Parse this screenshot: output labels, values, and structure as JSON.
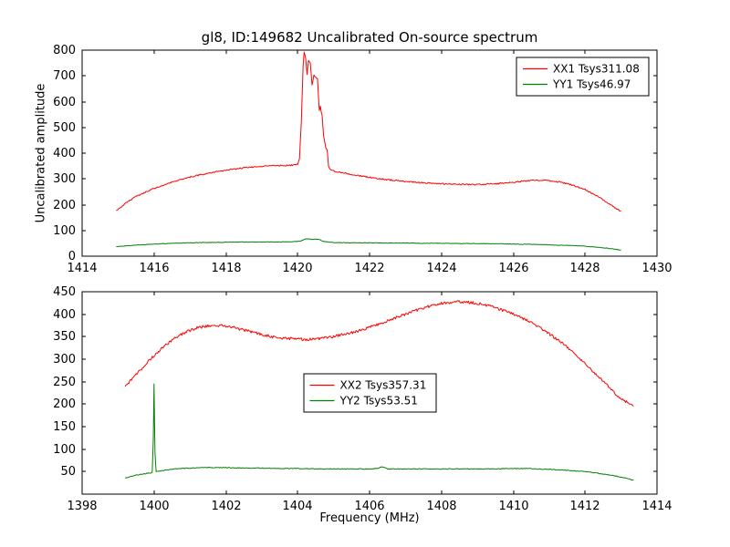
{
  "figure": {
    "title": "gl8, ID:149682 Uncalibrated On-source spectrum",
    "xlabel": "Frequency (MHz)",
    "ylabel": "Uncalibrated amplitude",
    "background": "#ffffff",
    "axis_color": "#000000"
  },
  "chart_data": [
    {
      "type": "line",
      "subplot": "top",
      "xlim": [
        1414,
        1430
      ],
      "ylim": [
        0,
        800
      ],
      "xticks": [
        1414,
        1416,
        1418,
        1420,
        1422,
        1424,
        1426,
        1428,
        1430
      ],
      "yticks": [
        0,
        100,
        200,
        300,
        400,
        500,
        600,
        700,
        800
      ],
      "grid": false,
      "legend_position": "upper-right",
      "series": [
        {
          "name": "XX1 Tsys311.08",
          "color": "#ff0000",
          "noise": 2.5,
          "points": [
            [
              1414.95,
              175
            ],
            [
              1415.2,
              205
            ],
            [
              1415.5,
              232
            ],
            [
              1416,
              263
            ],
            [
              1416.5,
              288
            ],
            [
              1417,
              307
            ],
            [
              1417.5,
              322
            ],
            [
              1418,
              334
            ],
            [
              1418.5,
              343
            ],
            [
              1419,
              349
            ],
            [
              1419.5,
              352
            ],
            [
              1419.8,
              353
            ],
            [
              1420.0,
              356
            ],
            [
              1420.05,
              380
            ],
            [
              1420.1,
              520
            ],
            [
              1420.15,
              740
            ],
            [
              1420.18,
              790
            ],
            [
              1420.22,
              770
            ],
            [
              1420.26,
              705
            ],
            [
              1420.3,
              760
            ],
            [
              1420.35,
              750
            ],
            [
              1420.4,
              665
            ],
            [
              1420.45,
              705
            ],
            [
              1420.5,
              695
            ],
            [
              1420.55,
              690
            ],
            [
              1420.6,
              565
            ],
            [
              1420.63,
              580
            ],
            [
              1420.68,
              545
            ],
            [
              1420.72,
              470
            ],
            [
              1420.78,
              420
            ],
            [
              1420.82,
              415
            ],
            [
              1420.86,
              350
            ],
            [
              1420.9,
              338
            ],
            [
              1421,
              331
            ],
            [
              1421.5,
              317
            ],
            [
              1422,
              306
            ],
            [
              1422.5,
              297
            ],
            [
              1423,
              290
            ],
            [
              1423.5,
              285
            ],
            [
              1424,
              281
            ],
            [
              1424.5,
              279
            ],
            [
              1425,
              278
            ],
            [
              1425.5,
              281
            ],
            [
              1426,
              287
            ],
            [
              1426.3,
              292
            ],
            [
              1426.6,
              295
            ],
            [
              1427,
              293
            ],
            [
              1427.3,
              288
            ],
            [
              1427.6,
              278
            ],
            [
              1428,
              258
            ],
            [
              1428.4,
              228
            ],
            [
              1428.7,
              200
            ],
            [
              1429,
              173
            ]
          ]
        },
        {
          "name": "YY1 Tsys46.97",
          "color": "#008000",
          "noise": 1.0,
          "points": [
            [
              1414.95,
              37
            ],
            [
              1415.5,
              43
            ],
            [
              1416,
              47
            ],
            [
              1416.5,
              50
            ],
            [
              1417,
              52
            ],
            [
              1417.5,
              53
            ],
            [
              1418,
              54
            ],
            [
              1418.5,
              55
            ],
            [
              1419,
              55
            ],
            [
              1419.5,
              55
            ],
            [
              1420,
              57
            ],
            [
              1420.1,
              60
            ],
            [
              1420.2,
              66
            ],
            [
              1420.3,
              68
            ],
            [
              1420.4,
              64
            ],
            [
              1420.5,
              67
            ],
            [
              1420.6,
              65
            ],
            [
              1420.7,
              58
            ],
            [
              1420.8,
              56
            ],
            [
              1420.9,
              54
            ],
            [
              1421,
              53
            ],
            [
              1421.5,
              52
            ],
            [
              1422,
              52
            ],
            [
              1422.5,
              51
            ],
            [
              1423,
              51
            ],
            [
              1423.5,
              50
            ],
            [
              1424,
              50
            ],
            [
              1424.5,
              49
            ],
            [
              1425,
              49
            ],
            [
              1425.5,
              48
            ],
            [
              1426,
              47
            ],
            [
              1426.5,
              46
            ],
            [
              1427,
              44
            ],
            [
              1427.5,
              42
            ],
            [
              1428,
              39
            ],
            [
              1428.5,
              33
            ],
            [
              1429,
              24
            ]
          ]
        }
      ]
    },
    {
      "type": "line",
      "subplot": "bottom",
      "xlim": [
        1398,
        1414
      ],
      "ylim": [
        0,
        450
      ],
      "xticks": [
        1398,
        1400,
        1402,
        1404,
        1406,
        1408,
        1410,
        1412,
        1414
      ],
      "yticks": [
        50,
        100,
        150,
        200,
        250,
        300,
        350,
        400,
        450
      ],
      "grid": false,
      "legend_position": "center",
      "series": [
        {
          "name": "XX2 Tsys357.31",
          "color": "#ff0000",
          "noise": 3.0,
          "points": [
            [
              1399.2,
              238
            ],
            [
              1399.4,
              258
            ],
            [
              1399.7,
              283
            ],
            [
              1400,
              308
            ],
            [
              1400.3,
              330
            ],
            [
              1400.6,
              348
            ],
            [
              1400.9,
              361
            ],
            [
              1401.2,
              370
            ],
            [
              1401.5,
              374
            ],
            [
              1401.8,
              375
            ],
            [
              1402.1,
              372
            ],
            [
              1402.4,
              367
            ],
            [
              1402.7,
              361
            ],
            [
              1403,
              355
            ],
            [
              1403.3,
              350
            ],
            [
              1403.6,
              347
            ],
            [
              1403.9,
              345
            ],
            [
              1404.2,
              344
            ],
            [
              1404.5,
              345
            ],
            [
              1404.8,
              348
            ],
            [
              1405.1,
              352
            ],
            [
              1405.4,
              357
            ],
            [
              1405.7,
              363
            ],
            [
              1406,
              371
            ],
            [
              1406.3,
              379
            ],
            [
              1406.6,
              388
            ],
            [
              1406.9,
              397
            ],
            [
              1407.2,
              406
            ],
            [
              1407.5,
              414
            ],
            [
              1407.8,
              421
            ],
            [
              1408.1,
              425
            ],
            [
              1408.4,
              428
            ],
            [
              1408.7,
              427
            ],
            [
              1409,
              424
            ],
            [
              1409.3,
              419
            ],
            [
              1409.6,
              412
            ],
            [
              1409.9,
              403
            ],
            [
              1410.2,
              393
            ],
            [
              1410.5,
              381
            ],
            [
              1410.8,
              367
            ],
            [
              1411.1,
              351
            ],
            [
              1411.4,
              333
            ],
            [
              1411.7,
              313
            ],
            [
              1412,
              291
            ],
            [
              1412.3,
              267
            ],
            [
              1412.6,
              243
            ],
            [
              1412.9,
              219
            ],
            [
              1413.1,
              207
            ],
            [
              1413.35,
              196
            ]
          ]
        },
        {
          "name": "YY2 Tsys53.51",
          "color": "#008000",
          "noise": 0.8,
          "points": [
            [
              1399.2,
              36
            ],
            [
              1399.5,
              42
            ],
            [
              1399.8,
              46
            ],
            [
              1399.95,
              48
            ],
            [
              1399.98,
              120
            ],
            [
              1400.0,
              245
            ],
            [
              1400.03,
              90
            ],
            [
              1400.06,
              50
            ],
            [
              1400.3,
              53
            ],
            [
              1400.6,
              56
            ],
            [
              1401,
              58
            ],
            [
              1401.5,
              59
            ],
            [
              1402,
              59
            ],
            [
              1402.5,
              58
            ],
            [
              1403,
              58
            ],
            [
              1403.5,
              57
            ],
            [
              1404,
              57
            ],
            [
              1404.5,
              56
            ],
            [
              1405,
              56
            ],
            [
              1405.5,
              56
            ],
            [
              1406,
              56
            ],
            [
              1406.2,
              57
            ],
            [
              1406.35,
              61
            ],
            [
              1406.5,
              56
            ],
            [
              1407,
              56
            ],
            [
              1407.5,
              56
            ],
            [
              1408,
              56
            ],
            [
              1408.5,
              56
            ],
            [
              1409,
              56
            ],
            [
              1409.5,
              56
            ],
            [
              1410,
              57
            ],
            [
              1410.3,
              57
            ],
            [
              1410.6,
              56
            ],
            [
              1411,
              55
            ],
            [
              1411.3,
              54
            ],
            [
              1411.6,
              52
            ],
            [
              1412,
              50
            ],
            [
              1412.4,
              46
            ],
            [
              1412.8,
              41
            ],
            [
              1413.1,
              36
            ],
            [
              1413.35,
              31
            ]
          ]
        }
      ]
    }
  ]
}
